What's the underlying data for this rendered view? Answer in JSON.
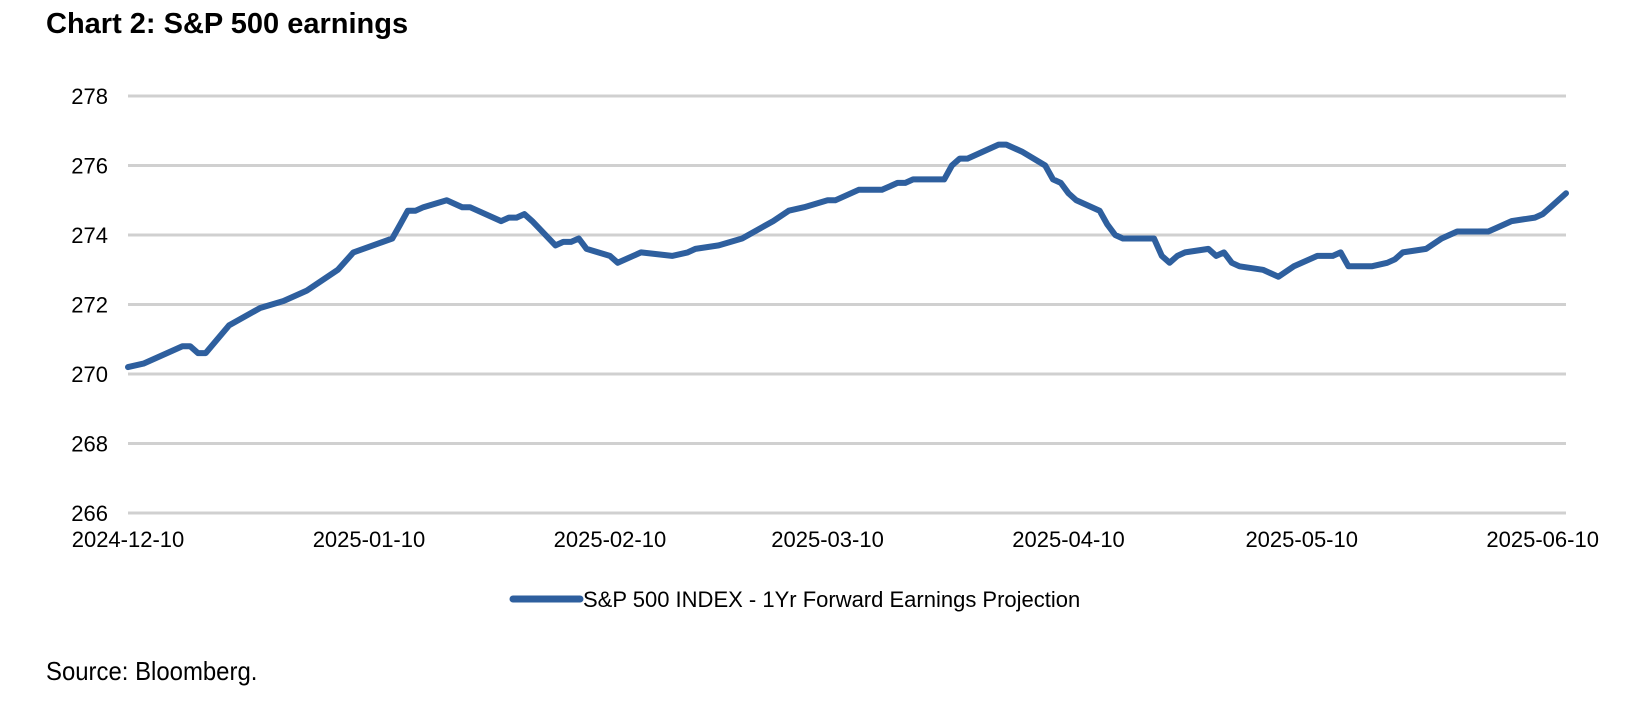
{
  "header": {
    "title": "Chart 2: S&P 500 earnings"
  },
  "footer": {
    "source": "Source: Bloomberg."
  },
  "chart_data": {
    "type": "line",
    "title": "Chart 2: S&P 500 earnings",
    "xlabel": "",
    "ylabel": "",
    "ylim": [
      266,
      278
    ],
    "yticks": [
      266,
      268,
      270,
      272,
      274,
      276,
      278
    ],
    "xlim": [
      "2024-12-10",
      "2025-06-13"
    ],
    "xtick_labels": [
      "2024-12-10",
      "2025-01-10",
      "2025-02-10",
      "2025-03-10",
      "2025-04-10",
      "2025-05-10",
      "2025-06-10"
    ],
    "grid": "horizontal",
    "legend_position": "bottom-center",
    "line_color": "#2e5f9e",
    "series": [
      {
        "name": "S&P 500 INDEX - 1Yr Forward Earnings Projection",
        "x": [
          "2024-12-10",
          "2024-12-12",
          "2024-12-17",
          "2024-12-18",
          "2024-12-19",
          "2024-12-20",
          "2024-12-23",
          "2024-12-27",
          "2024-12-30",
          "2025-01-02",
          "2025-01-06",
          "2025-01-08",
          "2025-01-13",
          "2025-01-14",
          "2025-01-15",
          "2025-01-16",
          "2025-01-17",
          "2025-01-20",
          "2025-01-22",
          "2025-01-23",
          "2025-01-24",
          "2025-01-27",
          "2025-01-28",
          "2025-01-29",
          "2025-01-30",
          "2025-01-31",
          "2025-02-03",
          "2025-02-04",
          "2025-02-05",
          "2025-02-06",
          "2025-02-07",
          "2025-02-10",
          "2025-02-11",
          "2025-02-14",
          "2025-02-18",
          "2025-02-20",
          "2025-02-21",
          "2025-02-24",
          "2025-02-27",
          "2025-03-03",
          "2025-03-05",
          "2025-03-07",
          "2025-03-10",
          "2025-03-11",
          "2025-03-14",
          "2025-03-17",
          "2025-03-19",
          "2025-03-20",
          "2025-03-21",
          "2025-03-24",
          "2025-03-25",
          "2025-03-26",
          "2025-03-27",
          "2025-03-28",
          "2025-03-31",
          "2025-04-01",
          "2025-04-02",
          "2025-04-03",
          "2025-04-04",
          "2025-04-07",
          "2025-04-08",
          "2025-04-09",
          "2025-04-10",
          "2025-04-11",
          "2025-04-14",
          "2025-04-15",
          "2025-04-16",
          "2025-04-17",
          "2025-04-18",
          "2025-04-21",
          "2025-04-22",
          "2025-04-23",
          "2025-04-24",
          "2025-04-25",
          "2025-04-28",
          "2025-04-29",
          "2025-04-30",
          "2025-05-01",
          "2025-05-02",
          "2025-05-05",
          "2025-05-07",
          "2025-05-09",
          "2025-05-12",
          "2025-05-13",
          "2025-05-14",
          "2025-05-15",
          "2025-05-16",
          "2025-05-19",
          "2025-05-21",
          "2025-05-22",
          "2025-05-23",
          "2025-05-26",
          "2025-05-28",
          "2025-05-29",
          "2025-05-30",
          "2025-06-02",
          "2025-06-03",
          "2025-06-04",
          "2025-06-05",
          "2025-06-06",
          "2025-06-09",
          "2025-06-10",
          "2025-06-11",
          "2025-06-12",
          "2025-06-13"
        ],
        "values": [
          270.2,
          270.3,
          270.8,
          270.8,
          270.6,
          270.6,
          271.4,
          271.9,
          272.1,
          272.4,
          273.0,
          273.5,
          273.9,
          274.3,
          274.7,
          274.7,
          274.8,
          275.0,
          274.8,
          274.8,
          274.7,
          274.4,
          274.5,
          274.5,
          274.6,
          274.4,
          273.7,
          273.8,
          273.8,
          273.9,
          273.6,
          273.4,
          273.2,
          273.5,
          273.4,
          273.5,
          273.6,
          273.7,
          273.9,
          274.4,
          274.7,
          274.8,
          275.0,
          275.0,
          275.3,
          275.3,
          275.5,
          275.5,
          275.6,
          275.6,
          275.6,
          276.0,
          276.2,
          276.2,
          276.5,
          276.6,
          276.6,
          276.5,
          276.4,
          276.0,
          275.6,
          275.5,
          275.2,
          275.0,
          274.7,
          274.3,
          274.0,
          273.9,
          273.9,
          273.9,
          273.4,
          273.2,
          273.4,
          273.5,
          273.6,
          273.4,
          273.5,
          273.2,
          273.1,
          273.0,
          272.8,
          273.1,
          273.4,
          273.4,
          273.4,
          273.5,
          273.1,
          273.1,
          273.2,
          273.3,
          273.5,
          273.6,
          273.9,
          274.0,
          274.1,
          274.1,
          274.1,
          274.2,
          274.3,
          274.4,
          274.5,
          274.6,
          274.8,
          275.0,
          275.2
        ]
      }
    ]
  }
}
